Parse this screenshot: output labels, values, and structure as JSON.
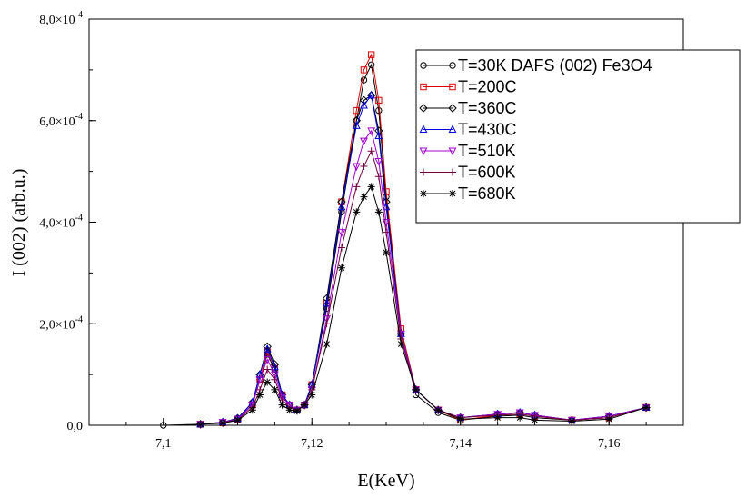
{
  "chart_data": {
    "type": "line",
    "title": "",
    "xlabel": "E(KeV)",
    "ylabel": "I (002) (arb.u.)",
    "xlim": [
      7.09,
      7.17
    ],
    "ylim": [
      0,
      0.0008
    ],
    "x_ticks": [
      {
        "value": 7.1,
        "label": "7,1"
      },
      {
        "value": 7.12,
        "label": "7,12"
      },
      {
        "value": 7.14,
        "label": "7,14"
      },
      {
        "value": 7.16,
        "label": "7,16"
      }
    ],
    "y_ticks": [
      {
        "value": 0,
        "mantissa": "0,0",
        "exp": ""
      },
      {
        "value": 0.0002,
        "mantissa": "2,0×10",
        "exp": "-4"
      },
      {
        "value": 0.0004,
        "mantissa": "4,0×10",
        "exp": "-4"
      },
      {
        "value": 0.0006,
        "mantissa": "6,0×10",
        "exp": "-4"
      },
      {
        "value": 0.0008,
        "mantissa": "8,0×10",
        "exp": "-4"
      }
    ],
    "grid": false,
    "legend_position": "top-right",
    "x": [
      7.1,
      7.105,
      7.108,
      7.11,
      7.112,
      7.113,
      7.114,
      7.115,
      7.116,
      7.117,
      7.118,
      7.119,
      7.12,
      7.122,
      7.124,
      7.126,
      7.127,
      7.128,
      7.129,
      7.13,
      7.132,
      7.134,
      7.137,
      7.14,
      7.145,
      7.148,
      7.15,
      7.155,
      7.16,
      7.165
    ],
    "series": [
      {
        "name": "T=30K DAFS (002) Fe3O4",
        "color": "#000000",
        "marker": "circle",
        "values": [
          0.0,
          2e-06,
          5e-06,
          1.2e-05,
          4e-05,
          9e-05,
          0.00014,
          0.00011,
          6e-05,
          4e-05,
          3e-05,
          4e-05,
          8e-05,
          0.00023,
          0.00042,
          0.0006,
          0.00068,
          0.00071,
          0.00062,
          0.00045,
          0.00018,
          6e-05,
          2.5e-05,
          1e-05,
          1.8e-05,
          2e-05,
          1.5e-05,
          1e-05,
          1.5e-05,
          3.5e-05
        ]
      },
      {
        "name": "T=200C",
        "color": "#dd0000",
        "marker": "square",
        "values": [
          null,
          2e-06,
          5e-06,
          1.2e-05,
          4e-05,
          9e-05,
          0.000145,
          0.000115,
          6e-05,
          4e-05,
          3e-05,
          4e-05,
          8e-05,
          0.00024,
          0.00044,
          0.00062,
          0.0007,
          0.00073,
          0.00064,
          0.00046,
          0.00019,
          7e-05,
          3e-05,
          1e-05,
          2e-05,
          2.2e-05,
          1.8e-05,
          1e-05,
          1.5e-05,
          3.5e-05
        ]
      },
      {
        "name": "T=360C",
        "color": "#000000",
        "marker": "diamond",
        "values": [
          null,
          2e-06,
          6e-06,
          1.4e-05,
          4.5e-05,
          0.0001,
          0.000155,
          0.00012,
          6e-05,
          4e-05,
          3e-05,
          4e-05,
          8e-05,
          0.00025,
          0.00044,
          0.0006,
          0.00064,
          0.00065,
          0.00058,
          0.00044,
          0.00018,
          7e-05,
          3e-05,
          1.5e-05,
          2.2e-05,
          2.5e-05,
          2e-05,
          1e-05,
          1.8e-05,
          3.5e-05
        ]
      },
      {
        "name": "T=430C",
        "color": "#0000dd",
        "marker": "triangle-up",
        "values": [
          null,
          2e-06,
          6e-06,
          1.3e-05,
          4.5e-05,
          0.0001,
          0.00015,
          0.000115,
          6e-05,
          4e-05,
          3e-05,
          4e-05,
          8e-05,
          0.00024,
          0.00043,
          0.00059,
          0.00063,
          0.00065,
          0.00057,
          0.00043,
          0.00018,
          7e-05,
          3e-05,
          1.5e-05,
          2.2e-05,
          2.5e-05,
          2e-05,
          1e-05,
          1.8e-05,
          3.5e-05
        ]
      },
      {
        "name": "T=510K",
        "color": "#a000d0",
        "marker": "triangle-down",
        "values": [
          null,
          2e-06,
          6e-06,
          1.2e-05,
          4e-05,
          9e-05,
          0.00013,
          0.0001,
          5.5e-05,
          4e-05,
          3e-05,
          4e-05,
          7e-05,
          0.00021,
          0.00038,
          0.00051,
          0.00056,
          0.00058,
          0.00052,
          0.0004,
          0.00018,
          7e-05,
          3e-05,
          1.5e-05,
          2.2e-05,
          2.5e-05,
          2e-05,
          1e-05,
          1.8e-05,
          3.5e-05
        ]
      },
      {
        "name": "T=600K",
        "color": "#700040",
        "marker": "plus",
        "values": [
          null,
          2e-06,
          5e-06,
          1.1e-05,
          3.5e-05,
          7e-05,
          0.00011,
          9e-05,
          5e-05,
          3.5e-05,
          3e-05,
          4e-05,
          7e-05,
          0.0002,
          0.00035,
          0.00047,
          0.00051,
          0.00054,
          0.00049,
          0.00038,
          0.00017,
          7e-05,
          3e-05,
          1.5e-05,
          2e-05,
          2.2e-05,
          1.8e-05,
          1e-05,
          1.5e-05,
          3.5e-05
        ]
      },
      {
        "name": "T=680K",
        "color": "#000000",
        "marker": "star",
        "values": [
          null,
          2e-06,
          4e-06,
          1e-05,
          3e-05,
          6e-05,
          8.5e-05,
          7e-05,
          4e-05,
          3e-05,
          2.8e-05,
          4e-05,
          6e-05,
          0.00016,
          0.00031,
          0.00042,
          0.00045,
          0.00047,
          0.00042,
          0.00034,
          0.00016,
          7e-05,
          3e-05,
          1.2e-05,
          1.5e-05,
          1.5e-05,
          1e-05,
          8e-06,
          1.2e-05,
          3.5e-05
        ]
      }
    ]
  }
}
